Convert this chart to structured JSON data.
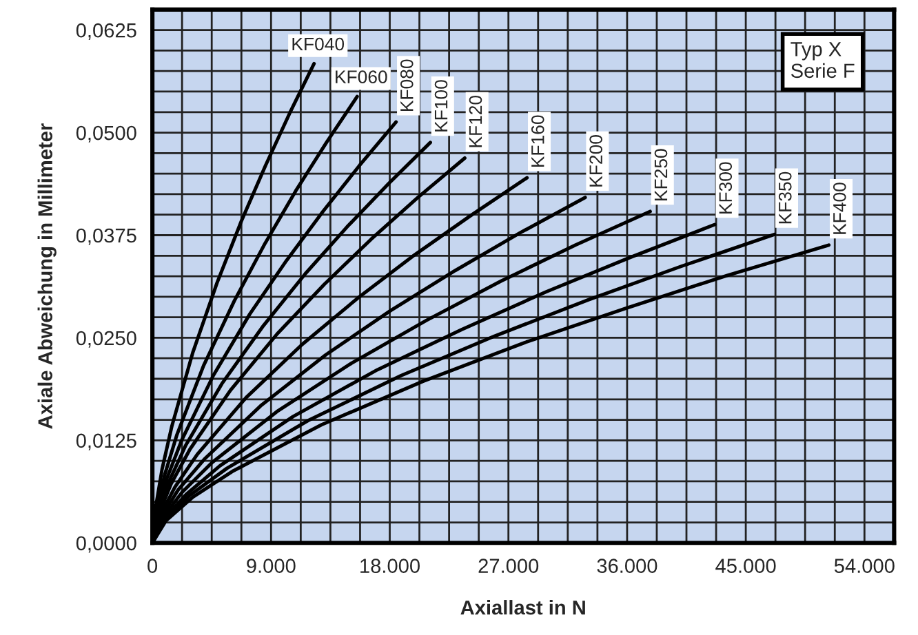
{
  "chart_data": {
    "type": "line",
    "xlabel": "Axiallast in N",
    "ylabel": "Axiale Abweichung in Millimeter",
    "annotations": [
      "Typ X\nSerie F"
    ],
    "xlim": [
      0,
      56250
    ],
    "ylim": [
      0,
      0.065
    ],
    "grid": true,
    "legend": false,
    "marker": "none",
    "line_style": "solid",
    "xticks": [
      0,
      {
        "value": 2250,
        "label": null
      },
      {
        "value": 4500,
        "label": null
      },
      {
        "value": 6750,
        "label": null
      },
      {
        "value": 9000,
        "label": "9.000"
      },
      {
        "value": 11250,
        "label": null
      },
      {
        "value": 13500,
        "label": null
      },
      {
        "value": 15750,
        "label": null
      },
      {
        "value": 18000,
        "label": "18.000"
      },
      {
        "value": 20250,
        "label": null
      },
      {
        "value": 22500,
        "label": null
      },
      {
        "value": 24750,
        "label": null
      },
      {
        "value": 27000,
        "label": "27.000"
      },
      {
        "value": 29250,
        "label": null
      },
      {
        "value": 31500,
        "label": null
      },
      {
        "value": 33750,
        "label": null
      },
      {
        "value": 36000,
        "label": "36.000"
      },
      {
        "value": 38250,
        "label": null
      },
      {
        "value": 40500,
        "label": null
      },
      {
        "value": 42750,
        "label": null
      },
      {
        "value": 45000,
        "label": "45.000"
      },
      {
        "value": 47250,
        "label": null
      },
      {
        "value": 49500,
        "label": null
      },
      {
        "value": 51750,
        "label": null
      },
      {
        "value": 54000,
        "label": "54.000"
      }
    ],
    "yticks": [
      {
        "value": 0,
        "label": "0,0000"
      },
      {
        "value": 0.0025,
        "label": null
      },
      {
        "value": 0.005,
        "label": null
      },
      {
        "value": 0.0075,
        "label": null
      },
      {
        "value": 0.01,
        "label": null
      },
      {
        "value": 0.0125,
        "label": "0,0125"
      },
      {
        "value": 0.015,
        "label": null
      },
      {
        "value": 0.0175,
        "label": null
      },
      {
        "value": 0.02,
        "label": null
      },
      {
        "value": 0.0225,
        "label": null
      },
      {
        "value": 0.025,
        "label": "0,0250"
      },
      {
        "value": 0.0275,
        "label": null
      },
      {
        "value": 0.03,
        "label": null
      },
      {
        "value": 0.0325,
        "label": null
      },
      {
        "value": 0.035,
        "label": null
      },
      {
        "value": 0.0375,
        "label": "0,0375"
      },
      {
        "value": 0.04,
        "label": null
      },
      {
        "value": 0.0425,
        "label": null
      },
      {
        "value": 0.045,
        "label": null
      },
      {
        "value": 0.0475,
        "label": null
      },
      {
        "value": 0.05,
        "label": "0,0500"
      },
      {
        "value": 0.0525,
        "label": null
      },
      {
        "value": 0.055,
        "label": null
      },
      {
        "value": 0.0575,
        "label": null
      },
      {
        "value": 0.06,
        "label": null
      },
      {
        "value": 0.0625,
        "label": "0,0625"
      }
    ],
    "series": [
      {
        "name": "KF040",
        "color": "#000000",
        "x": [
          0,
          245,
          736,
          1471,
          3065,
          4904,
          6743,
          8582,
          10421,
          12260
        ],
        "values": [
          0,
          0.0043,
          0.009,
          0.0142,
          0.0232,
          0.0317,
          0.0392,
          0.046,
          0.0524,
          0.0584
        ]
      },
      {
        "name": "KF060",
        "color": "#000000",
        "x": [
          0,
          311,
          932,
          1864,
          3883,
          6212,
          8542,
          10871,
          13201,
          15530
        ],
        "values": [
          0,
          0.004,
          0.0083,
          0.0132,
          0.0216,
          0.0295,
          0.0365,
          0.0429,
          0.0488,
          0.0544
        ]
      },
      {
        "name": "KF080",
        "color": "#000000",
        "x": [
          0,
          370,
          1109,
          2218,
          4620,
          7392,
          10164,
          12936,
          15708,
          18480
        ],
        "values": [
          0,
          0.0038,
          0.0079,
          0.0125,
          0.0204,
          0.0279,
          0.0344,
          0.0404,
          0.046,
          0.0513
        ]
      },
      {
        "name": "KF100",
        "color": "#000000",
        "x": [
          0,
          422,
          1265,
          2530,
          5270,
          8432,
          11594,
          14756,
          17918,
          21080
        ],
        "values": [
          0,
          0.0036,
          0.0075,
          0.0119,
          0.0194,
          0.0265,
          0.0328,
          0.0385,
          0.0438,
          0.0488
        ]
      },
      {
        "name": "KF120",
        "color": "#000000",
        "x": [
          0,
          474,
          1421,
          2843,
          5923,
          9476,
          13030,
          16583,
          20137,
          23690
        ],
        "values": [
          0,
          0.0035,
          0.0072,
          0.0114,
          0.0186,
          0.0255,
          0.0315,
          0.037,
          0.0421,
          0.0469
        ]
      },
      {
        "name": "KF160",
        "color": "#000000",
        "x": [
          0,
          568,
          1705,
          3409,
          7103,
          11364,
          15626,
          19887,
          24149,
          28410
        ],
        "values": [
          0,
          0.0033,
          0.0068,
          0.0108,
          0.0177,
          0.0242,
          0.0299,
          0.0351,
          0.0399,
          0.0445
        ]
      },
      {
        "name": "KF200",
        "color": "#000000",
        "x": [
          0,
          656,
          1969,
          3938,
          8205,
          13128,
          18051,
          22974,
          27897,
          32820
        ],
        "values": [
          0,
          0.0031,
          0.0065,
          0.0102,
          0.0167,
          0.0229,
          0.0283,
          0.0332,
          0.0378,
          0.0421
        ]
      },
      {
        "name": "KF250",
        "color": "#000000",
        "x": [
          0,
          755,
          2265,
          4530,
          9438,
          15100,
          20763,
          26425,
          32088,
          37750
        ],
        "values": [
          0,
          0.003,
          0.0062,
          0.0098,
          0.016,
          0.0219,
          0.0271,
          0.0319,
          0.0363,
          0.0404
        ]
      },
      {
        "name": "KF300",
        "color": "#000000",
        "x": [
          0,
          853,
          2559,
          5118,
          10663,
          17060,
          23458,
          29855,
          36253,
          42650
        ],
        "values": [
          0,
          0.0029,
          0.0059,
          0.0094,
          0.0154,
          0.0211,
          0.026,
          0.0306,
          0.0348,
          0.0388
        ]
      },
      {
        "name": "KF350",
        "color": "#000000",
        "x": [
          0,
          943,
          2830,
          5660,
          11793,
          18868,
          25944,
          33019,
          40095,
          47170
        ],
        "values": [
          0,
          0.0028,
          0.0058,
          0.0091,
          0.0149,
          0.0204,
          0.0252,
          0.0296,
          0.0337,
          0.0376
        ]
      },
      {
        "name": "KF400",
        "color": "#000000",
        "x": [
          0,
          1026,
          3078,
          6156,
          12825,
          20520,
          28215,
          35910,
          43605,
          51300
        ],
        "values": [
          0,
          0.0027,
          0.0056,
          0.0088,
          0.0144,
          0.0197,
          0.0244,
          0.0286,
          0.0326,
          0.0363
        ]
      }
    ]
  }
}
